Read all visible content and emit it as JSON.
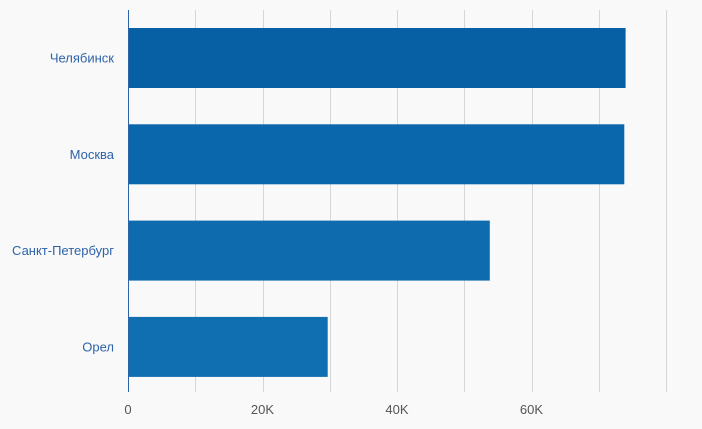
{
  "chart_data": {
    "type": "bar",
    "orientation": "horizontal",
    "categories": [
      "Челябинск",
      "Москва",
      "Санкт-Петербург",
      "Орел"
    ],
    "values": [
      74000,
      73800,
      53800,
      29700
    ],
    "xlim": [
      0,
      80000
    ],
    "x_ticks": [
      {
        "value": 0,
        "label": "0"
      },
      {
        "value": 20000,
        "label": "20K"
      },
      {
        "value": 40000,
        "label": "40K"
      },
      {
        "value": 60000,
        "label": "60K"
      }
    ],
    "grid_step": 10000,
    "grid": true,
    "legend": "none",
    "title": "",
    "xlabel": "",
    "ylabel": "",
    "colors": {
      "bars": [
        "#075fa4",
        "#0b67ab",
        "#0e6cae",
        "#106fb1"
      ],
      "category_label": "#2d63a8",
      "tick_label": "#555555",
      "axis": "#2d63a8",
      "grid": "#d6d6d6",
      "background": "#f9f9f9"
    }
  }
}
